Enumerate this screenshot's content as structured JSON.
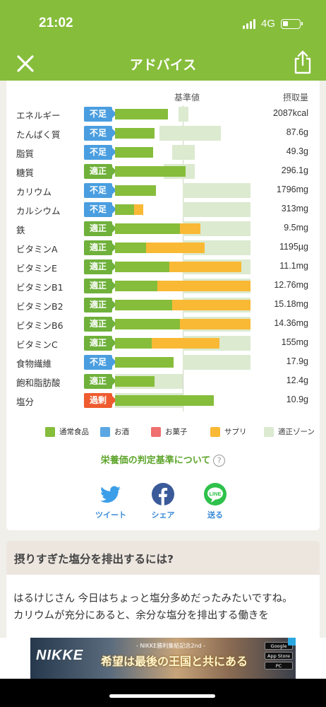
{
  "status": {
    "time": "21:02",
    "network": "4G"
  },
  "nav": {
    "title": "アドバイス",
    "close_icon": "close-icon",
    "share_icon": "share-icon"
  },
  "table": {
    "header_base": "基準値",
    "header_intake": "摂取量",
    "badge_colors": {
      "不足": "#4a9ee0",
      "適正": "#6fb13b",
      "過剰": "#ee5b2f"
    },
    "rows": [
      {
        "name": "エネルギー",
        "status": "不足",
        "value": "2087kcal",
        "food": 0.39,
        "supp": 0.0,
        "zone": [
          0.47,
          0.54
        ]
      },
      {
        "name": "たんぱく質",
        "status": "不足",
        "value": "87.6g",
        "food": 0.29,
        "supp": 0.0,
        "zone": [
          0.33,
          0.78
        ]
      },
      {
        "name": "脂質",
        "status": "不足",
        "value": "49.3g",
        "food": 0.28,
        "supp": 0.0,
        "zone": [
          0.42,
          0.59
        ]
      },
      {
        "name": "糖質",
        "status": "適正",
        "value": "296.1g",
        "food": 0.52,
        "supp": 0.0,
        "zone": [
          0.36,
          0.59
        ]
      },
      {
        "name": "カリウム",
        "status": "不足",
        "value": "1796mg",
        "food": 0.3,
        "supp": 0.0,
        "zone": [
          0.5,
          1.0
        ]
      },
      {
        "name": "カルシウム",
        "status": "不足",
        "value": "313mg",
        "food": 0.14,
        "supp": 0.07,
        "zone": [
          0.5,
          1.0
        ]
      },
      {
        "name": "鉄",
        "status": "適正",
        "value": "9.5mg",
        "food": 0.48,
        "supp": 0.15,
        "zone": [
          0.5,
          1.0
        ]
      },
      {
        "name": "ビタミンA",
        "status": "適正",
        "value": "1195µg",
        "food": 0.23,
        "supp": 0.43,
        "zone": [
          0.5,
          1.0
        ]
      },
      {
        "name": "ビタミンE",
        "status": "適正",
        "value": "11.1mg",
        "food": 0.4,
        "supp": 0.53,
        "zone": [
          0.5,
          1.0
        ]
      },
      {
        "name": "ビタミンB1",
        "status": "適正",
        "value": "12.76mg",
        "food": 0.31,
        "supp": 0.69,
        "zone": [
          0.5,
          1.0
        ]
      },
      {
        "name": "ビタミンB2",
        "status": "適正",
        "value": "15.18mg",
        "food": 0.42,
        "supp": 0.58,
        "zone": [
          0.5,
          1.0
        ]
      },
      {
        "name": "ビタミンB6",
        "status": "適正",
        "value": "14.36mg",
        "food": 0.48,
        "supp": 0.52,
        "zone": [
          0.5,
          1.0
        ]
      },
      {
        "name": "ビタミンC",
        "status": "適正",
        "value": "155mg",
        "food": 0.27,
        "supp": 0.5,
        "zone": [
          0.5,
          1.0
        ]
      },
      {
        "name": "食物繊維",
        "status": "不足",
        "value": "17.9g",
        "food": 0.43,
        "supp": 0.0,
        "zone": [
          0.5,
          1.0
        ]
      },
      {
        "name": "飽和脂肪酸",
        "status": "適正",
        "value": "12.4g",
        "food": 0.29,
        "supp": 0.0,
        "zone": [
          0.0,
          0.5
        ]
      },
      {
        "name": "塩分",
        "status": "過剰",
        "value": "10.9g",
        "food": 0.73,
        "supp": 0.0,
        "zone": [
          0.0,
          0.5
        ]
      }
    ]
  },
  "legend": [
    {
      "label": "通常食品",
      "color": "#86bd3b"
    },
    {
      "label": "お酒",
      "color": "#5aa7e3"
    },
    {
      "label": "お菓子",
      "color": "#f06f6f"
    },
    {
      "label": "サプリ",
      "color": "#f9b935"
    },
    {
      "label": "適正ゾーン",
      "color": "#dcead0"
    }
  ],
  "criteria_link": "栄養価の判定基準について",
  "share": {
    "tweet": "ツイート",
    "facebook": "シェア",
    "line": "送る",
    "line_logo": "LINE"
  },
  "advice": {
    "title": "摂りすぎた塩分を排出するには?",
    "text": "はるけじさん 今日はちょっと塩分多めだったみたいですね。\nカリウムが充分にあると、余分な塩分を排出する働きを"
  },
  "ad": {
    "logo": "NIKKE",
    "sub": "- NIKKE勝利集結記念2nd -",
    "main": "希望は最後の王国と共にある",
    "stores": [
      "Google Play",
      "App Store",
      "PC"
    ]
  }
}
